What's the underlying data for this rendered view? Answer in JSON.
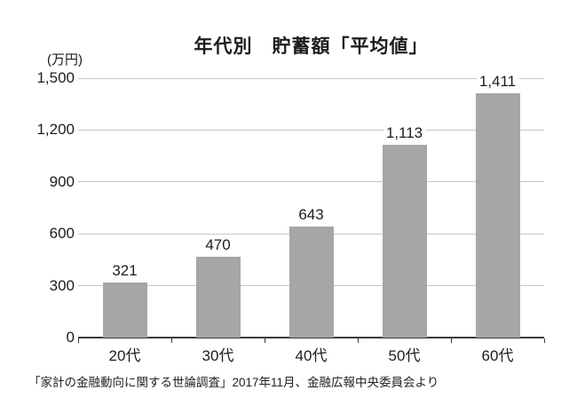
{
  "chart": {
    "title": "年代別　貯蓄額「平均値」",
    "unit_label": "(万円)",
    "source": "「家計の金融動向に関する世論調査」2017年11月、金融広報中央委員会より"
  },
  "chart_data": {
    "type": "bar",
    "title": "年代別　貯蓄額「平均値」",
    "categories": [
      "20代",
      "30代",
      "40代",
      "50代",
      "60代"
    ],
    "values": [
      321,
      470,
      643,
      1113,
      1411
    ],
    "value_labels": [
      "321",
      "470",
      "643",
      "1,113",
      "1,411"
    ],
    "ylabel": "(万円)",
    "xlabel": "",
    "ylim": [
      0,
      1500
    ],
    "yticks": [
      0,
      300,
      600,
      900,
      1200,
      1500
    ],
    "ytick_labels": [
      "0",
      "300",
      "600",
      "900",
      "1,200",
      "1,500"
    ],
    "grid": true,
    "legend": false,
    "bar_color": "#a6a6a6",
    "gridline_color": "#c7c7c7",
    "axis_color": "#3a3a3a",
    "text_color": "#1c1c1c",
    "source": "「家計の金融動向に関する世論調査」2017年11月、金融広報中央委員会より"
  }
}
